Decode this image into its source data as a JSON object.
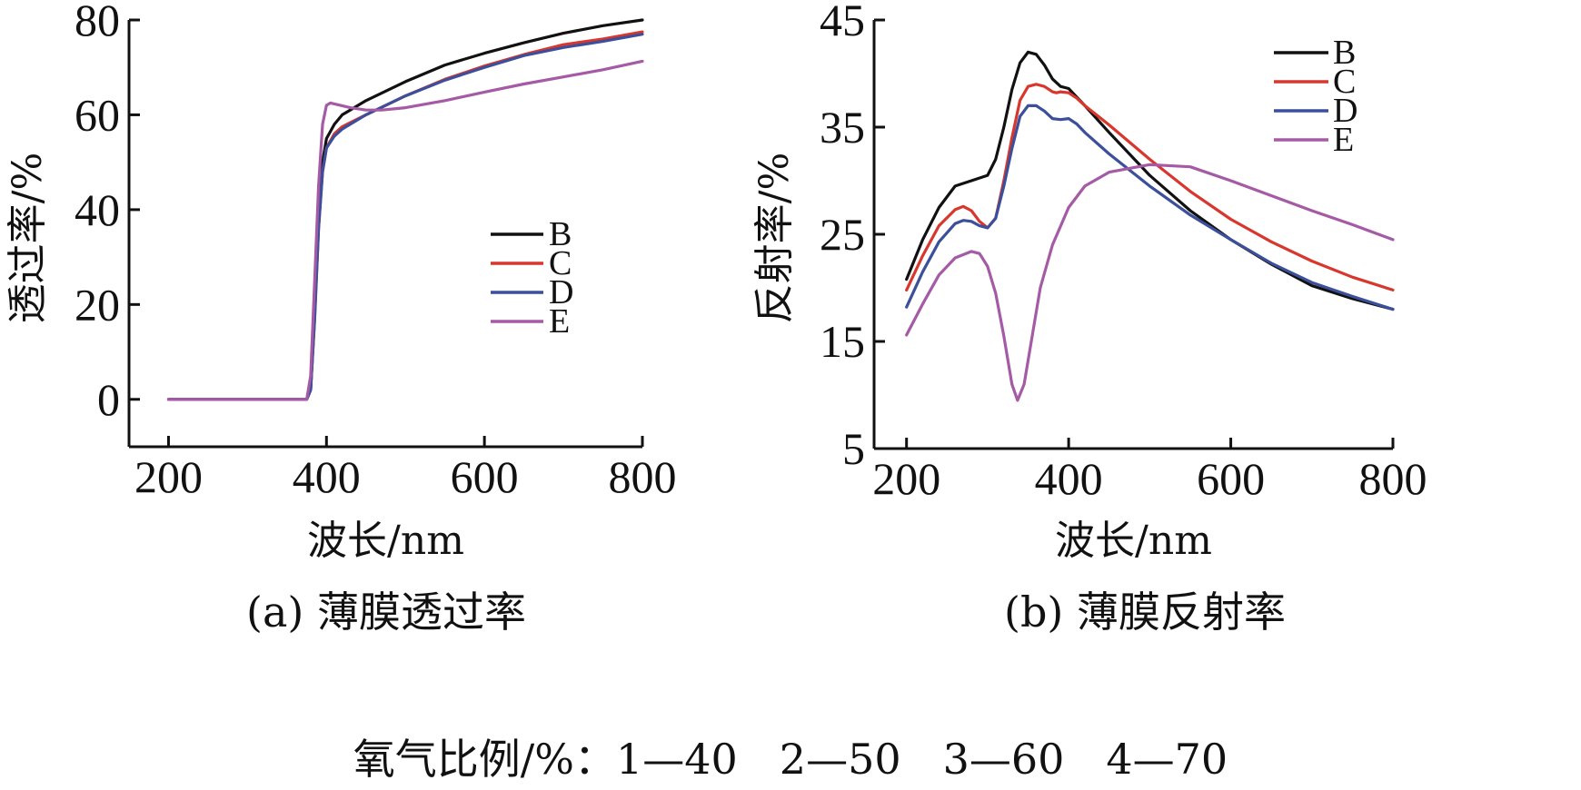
{
  "chart_data": [
    {
      "type": "line",
      "caption": "(a) 薄膜透过率",
      "xlabel": "波长/nm",
      "ylabel": "透过率/%",
      "xlim": [
        150,
        800
      ],
      "ylim": [
        -10,
        80
      ],
      "xticks": [
        200,
        400,
        600,
        800
      ],
      "yticks": [
        0,
        20,
        40,
        60,
        80
      ],
      "legend": "center-right",
      "grid": false,
      "colors": {
        "B": "#111111",
        "C": "#d7372c",
        "D": "#3b4f9a",
        "E": "#a55aa5"
      },
      "series": [
        {
          "name": "B",
          "x": [
            200,
            375,
            380,
            385,
            390,
            395,
            400,
            410,
            420,
            450,
            500,
            550,
            600,
            650,
            700,
            750,
            800
          ],
          "y": [
            0,
            0,
            2,
            18,
            38,
            50,
            55,
            58,
            60,
            63,
            67,
            70.5,
            73,
            75.2,
            77.2,
            78.8,
            80
          ]
        },
        {
          "name": "C",
          "x": [
            200,
            375,
            380,
            385,
            390,
            395,
            400,
            410,
            420,
            450,
            500,
            550,
            600,
            650,
            700,
            750,
            800
          ],
          "y": [
            0,
            0,
            2,
            17,
            36,
            48,
            53,
            56,
            57.5,
            60,
            64,
            67.5,
            70.3,
            72.7,
            74.8,
            76,
            77.5
          ]
        },
        {
          "name": "D",
          "x": [
            200,
            375,
            380,
            385,
            390,
            395,
            400,
            410,
            420,
            450,
            500,
            550,
            600,
            650,
            700,
            750,
            800
          ],
          "y": [
            0,
            0,
            2,
            17,
            36,
            48,
            53,
            55.5,
            57,
            60,
            64,
            67.3,
            70,
            72.5,
            74.2,
            75.5,
            77
          ]
        },
        {
          "name": "E",
          "x": [
            200,
            375,
            380,
            385,
            390,
            395,
            400,
            405,
            410,
            430,
            450,
            470,
            500,
            550,
            600,
            650,
            700,
            750,
            800
          ],
          "y": [
            0,
            0,
            5,
            25,
            45,
            58,
            62,
            62.5,
            62.3,
            61.5,
            61,
            61,
            61.5,
            63,
            64.8,
            66.5,
            68,
            69.5,
            71.3
          ]
        }
      ]
    },
    {
      "type": "line",
      "caption": "(b) 薄膜反射率",
      "xlabel": "波长/nm",
      "ylabel": "反射率/%",
      "xlim": [
        160,
        800
      ],
      "ylim": [
        5,
        45
      ],
      "xticks": [
        200,
        400,
        600,
        800
      ],
      "yticks": [
        5,
        15,
        25,
        35,
        45
      ],
      "legend": "top-right",
      "grid": false,
      "colors": {
        "B": "#111111",
        "C": "#d7372c",
        "D": "#3b4f9a",
        "E": "#a55aa5"
      },
      "series": [
        {
          "name": "B",
          "x": [
            200,
            220,
            240,
            260,
            280,
            300,
            310,
            320,
            330,
            340,
            350,
            360,
            370,
            380,
            390,
            400,
            410,
            420,
            450,
            500,
            550,
            600,
            650,
            700,
            750,
            800
          ],
          "y": [
            20.8,
            24.5,
            27.5,
            29.5,
            30,
            30.5,
            32,
            35,
            38.5,
            41,
            42,
            41.8,
            40.8,
            39.5,
            38.8,
            38.6,
            37.8,
            37,
            34.5,
            30.5,
            27.2,
            24.5,
            22.2,
            20.2,
            19,
            18
          ]
        },
        {
          "name": "C",
          "x": [
            200,
            220,
            240,
            260,
            270,
            280,
            290,
            300,
            310,
            320,
            330,
            340,
            350,
            360,
            370,
            380,
            385,
            390,
            400,
            410,
            420,
            450,
            500,
            550,
            600,
            650,
            700,
            750,
            800
          ],
          "y": [
            19.8,
            23,
            25.8,
            27.3,
            27.6,
            27.2,
            26.2,
            25.6,
            26.5,
            30,
            34,
            37.5,
            38.8,
            39,
            38.8,
            38.3,
            38.2,
            38.3,
            38.2,
            37.7,
            37,
            35.2,
            32,
            29,
            26.4,
            24.3,
            22.5,
            21,
            19.8
          ]
        },
        {
          "name": "D",
          "x": [
            200,
            220,
            240,
            260,
            270,
            280,
            290,
            300,
            310,
            320,
            330,
            340,
            350,
            360,
            370,
            380,
            390,
            400,
            410,
            420,
            450,
            500,
            550,
            600,
            650,
            700,
            750,
            800
          ],
          "y": [
            18.2,
            21.5,
            24.3,
            26,
            26.3,
            26.2,
            25.8,
            25.6,
            26.5,
            29.5,
            33,
            36,
            37,
            37,
            36.5,
            35.8,
            35.7,
            35.8,
            35.3,
            34.5,
            32.5,
            29.5,
            26.8,
            24.5,
            22.3,
            20.5,
            19.2,
            18
          ]
        },
        {
          "name": "E",
          "x": [
            200,
            220,
            240,
            260,
            280,
            290,
            300,
            310,
            320,
            330,
            337,
            345,
            355,
            365,
            380,
            400,
            420,
            450,
            500,
            550,
            600,
            650,
            700,
            750,
            800
          ],
          "y": [
            15.6,
            18.5,
            21.2,
            22.8,
            23.4,
            23.2,
            22,
            19.5,
            15.5,
            11,
            9.5,
            11,
            15.5,
            20,
            24,
            27.5,
            29.5,
            30.8,
            31.5,
            31.3,
            30,
            28.6,
            27.2,
            25.9,
            24.5
          ]
        }
      ]
    }
  ],
  "footnote": "氧气比例/%：1—40　2—50　3—60　4—70"
}
